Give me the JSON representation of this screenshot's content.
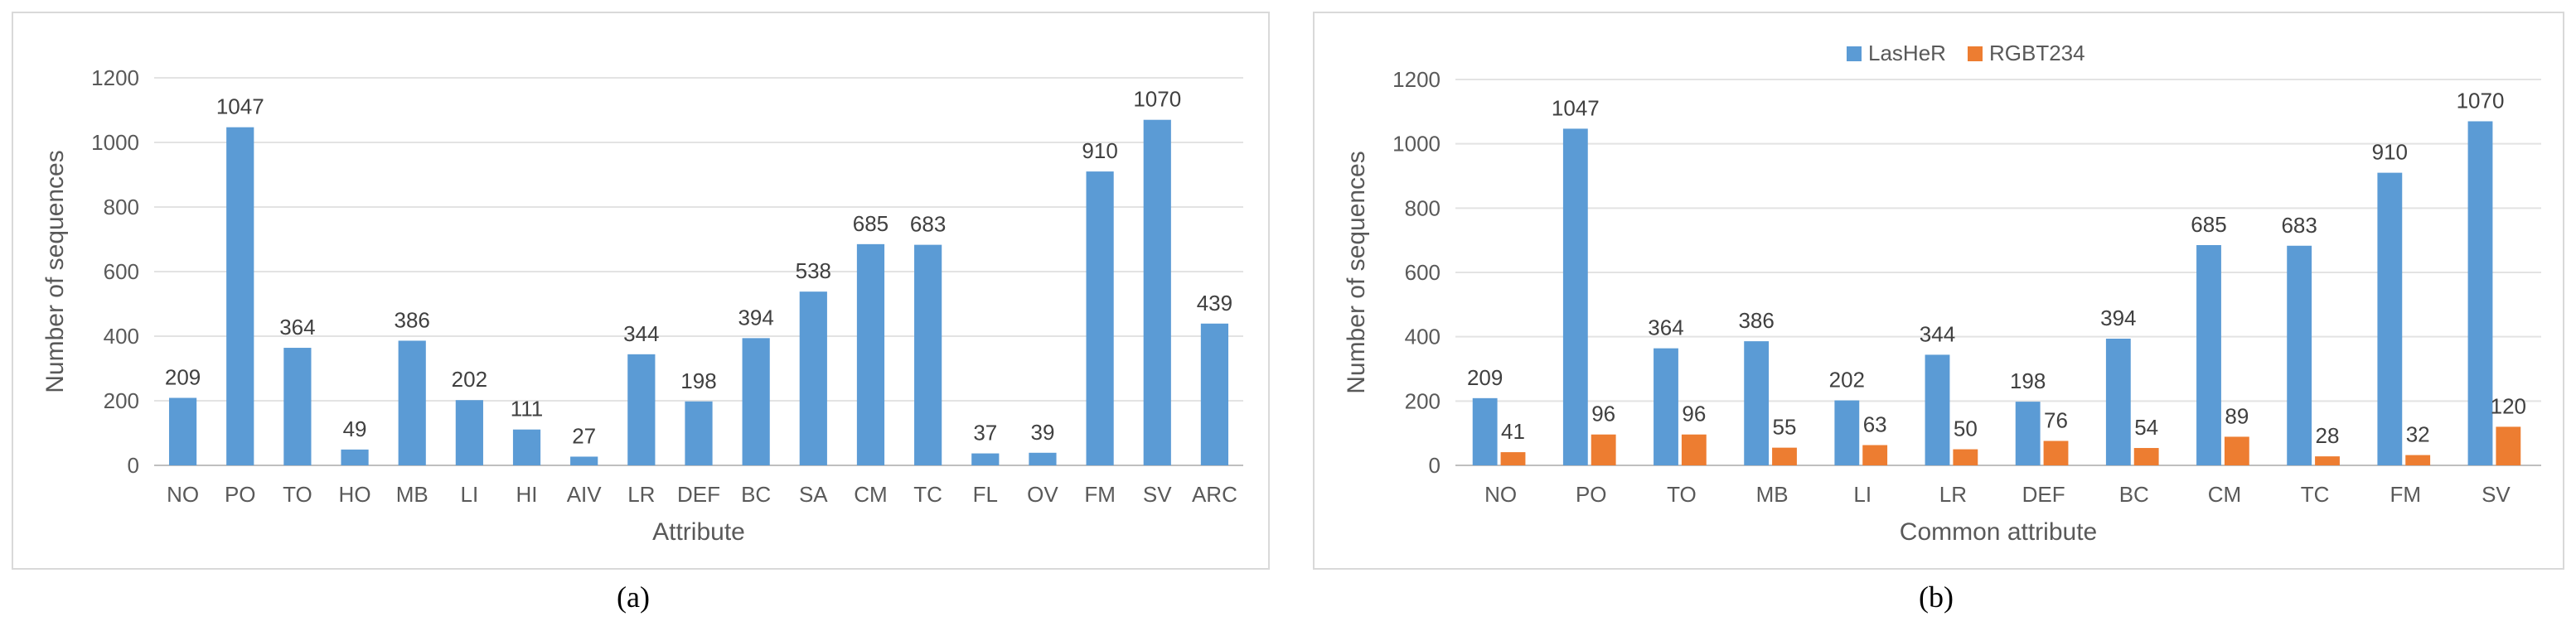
{
  "chart_data": [
    {
      "type": "bar",
      "caption": "(a)",
      "xlabel": "Attribute",
      "ylabel": "Number of sequences",
      "ylim": [
        0,
        1200
      ],
      "yticks": [
        0,
        200,
        400,
        600,
        800,
        1000,
        1200
      ],
      "grid": true,
      "categories": [
        "NO",
        "PO",
        "TO",
        "HO",
        "MB",
        "LI",
        "HI",
        "AIV",
        "LR",
        "DEF",
        "BC",
        "SA",
        "CM",
        "TC",
        "FL",
        "OV",
        "FM",
        "SV",
        "ARC"
      ],
      "series": [
        {
          "values": [
            209,
            1047,
            364,
            49,
            386,
            202,
            111,
            27,
            344,
            198,
            394,
            538,
            685,
            683,
            37,
            39,
            910,
            1070,
            439
          ],
          "color": "#5b9bd5"
        }
      ]
    },
    {
      "type": "bar",
      "caption": "(b)",
      "xlabel": "Common attribute",
      "ylabel": "Number of sequences",
      "ylim": [
        0,
        1200
      ],
      "yticks": [
        0,
        200,
        400,
        600,
        800,
        1000,
        1200
      ],
      "grid": true,
      "legend": "top-center",
      "categories": [
        "NO",
        "PO",
        "TO",
        "MB",
        "LI",
        "LR",
        "DEF",
        "BC",
        "CM",
        "TC",
        "FM",
        "SV"
      ],
      "series": [
        {
          "name": "LasHeR",
          "values": [
            209,
            1047,
            364,
            386,
            202,
            344,
            198,
            394,
            685,
            683,
            910,
            1070
          ],
          "color": "#5b9bd5"
        },
        {
          "name": "RGBT234",
          "values": [
            41,
            96,
            96,
            55,
            63,
            50,
            76,
            54,
            89,
            28,
            32,
            120
          ],
          "color": "#ed7d31"
        }
      ]
    }
  ]
}
